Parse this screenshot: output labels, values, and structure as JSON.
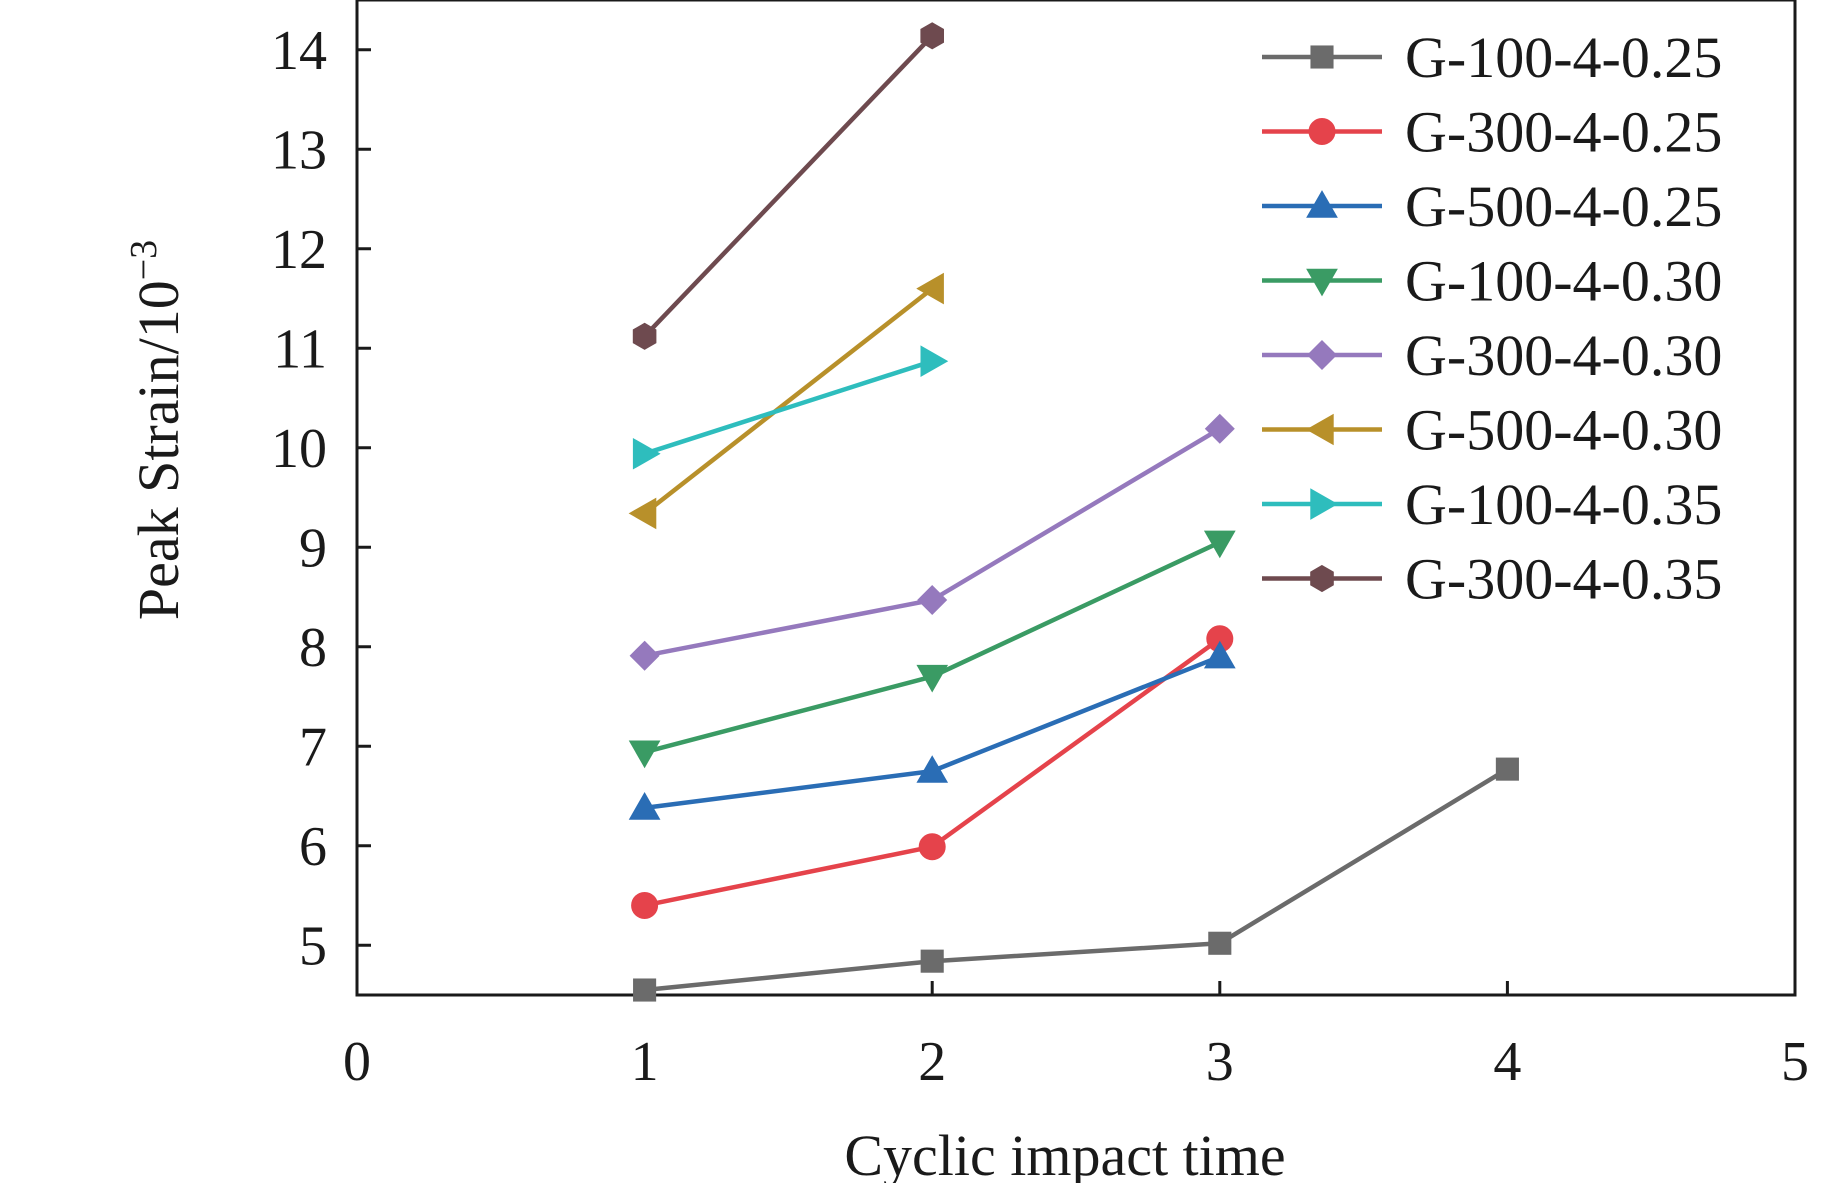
{
  "chart_data": {
    "type": "line",
    "xlabel": "Cyclic impact time",
    "ylabel": "Peak Strain/10",
    "ylabel_exponent": "−3",
    "xlim": [
      0,
      5
    ],
    "ylim": [
      4.5,
      14.5
    ],
    "xticks": [
      "0",
      "1",
      "2",
      "3",
      "4",
      "5"
    ],
    "yticks": [
      "5",
      "6",
      "7",
      "8",
      "9",
      "10",
      "11",
      "12",
      "13",
      "14"
    ],
    "grid": false,
    "legend_position": "top-right",
    "series": [
      {
        "name": "G-100-4-0.25",
        "color": "#6b6b6b",
        "marker": "square",
        "x": [
          1,
          2,
          3,
          4
        ],
        "y": [
          4.55,
          4.84,
          5.02,
          6.77
        ]
      },
      {
        "name": "G-300-4-0.25",
        "color": "#e5434b",
        "marker": "circle",
        "x": [
          1,
          2,
          3
        ],
        "y": [
          5.4,
          5.99,
          8.08
        ]
      },
      {
        "name": "G-500-4-0.25",
        "color": "#2a6db5",
        "marker": "triangle-up",
        "x": [
          1,
          2,
          3
        ],
        "y": [
          6.38,
          6.75,
          7.9
        ]
      },
      {
        "name": "G-100-4-0.30",
        "color": "#3a9b64",
        "marker": "triangle-down",
        "x": [
          1,
          2,
          3
        ],
        "y": [
          6.94,
          7.7,
          9.05
        ]
      },
      {
        "name": "G-300-4-0.30",
        "color": "#9579bd",
        "marker": "diamond",
        "x": [
          1,
          2,
          3
        ],
        "y": [
          7.91,
          8.47,
          10.19
        ]
      },
      {
        "name": "G-500-4-0.30",
        "color": "#b8902a",
        "marker": "triangle-left",
        "x": [
          1,
          2
        ],
        "y": [
          9.34,
          11.6
        ]
      },
      {
        "name": "G-100-4-0.35",
        "color": "#2ebdbd",
        "marker": "triangle-right",
        "x": [
          1,
          2
        ],
        "y": [
          9.94,
          10.87
        ]
      },
      {
        "name": "G-300-4-0.35",
        "color": "#6e4a4f",
        "marker": "hexagon",
        "x": [
          1,
          2
        ],
        "y": [
          11.12,
          14.14
        ]
      }
    ]
  }
}
